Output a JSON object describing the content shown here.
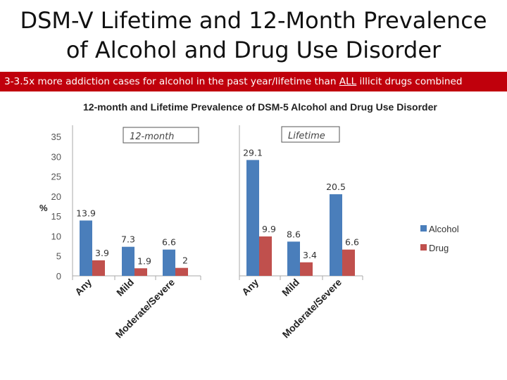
{
  "slide": {
    "title_line1": "DSM-V Lifetime and 12-Month Prevalence",
    "title_line2": "of Alcohol and Drug Use Disorder",
    "banner_before": "3-3.5x more addiction cases for alcohol in the past year/lifetime than ",
    "banner_emph": "ALL",
    "banner_after": " illicit drugs combined",
    "banner_color": "#c0000c"
  },
  "chart_data": {
    "type": "bar",
    "title": "12-month and Lifetime Prevalence of DSM-5 Alcohol and Drug Use Disorder",
    "ylabel": "%",
    "ylim": [
      0,
      35
    ],
    "yticks": [
      "0",
      "5",
      "10",
      "15",
      "20",
      "25",
      "30",
      "35"
    ],
    "legend_position": "right",
    "panels": [
      {
        "label": "12-month",
        "categories": [
          "Any",
          "Mild",
          "Moderate/Severe"
        ],
        "series": [
          {
            "name": "Alcohol",
            "color": "#4a7ebb",
            "values": [
              13.9,
              7.3,
              6.6
            ]
          },
          {
            "name": "Drug",
            "color": "#c0504d",
            "values": [
              3.9,
              1.9,
              2
            ]
          }
        ]
      },
      {
        "label": "Lifetime",
        "categories": [
          "Any",
          "Mild",
          "Moderate/Severe"
        ],
        "series": [
          {
            "name": "Alcohol",
            "color": "#4a7ebb",
            "values": [
              29.1,
              8.6,
              20.5
            ]
          },
          {
            "name": "Drug",
            "color": "#c0504d",
            "values": [
              9.9,
              3.4,
              6.6
            ]
          }
        ]
      }
    ]
  }
}
